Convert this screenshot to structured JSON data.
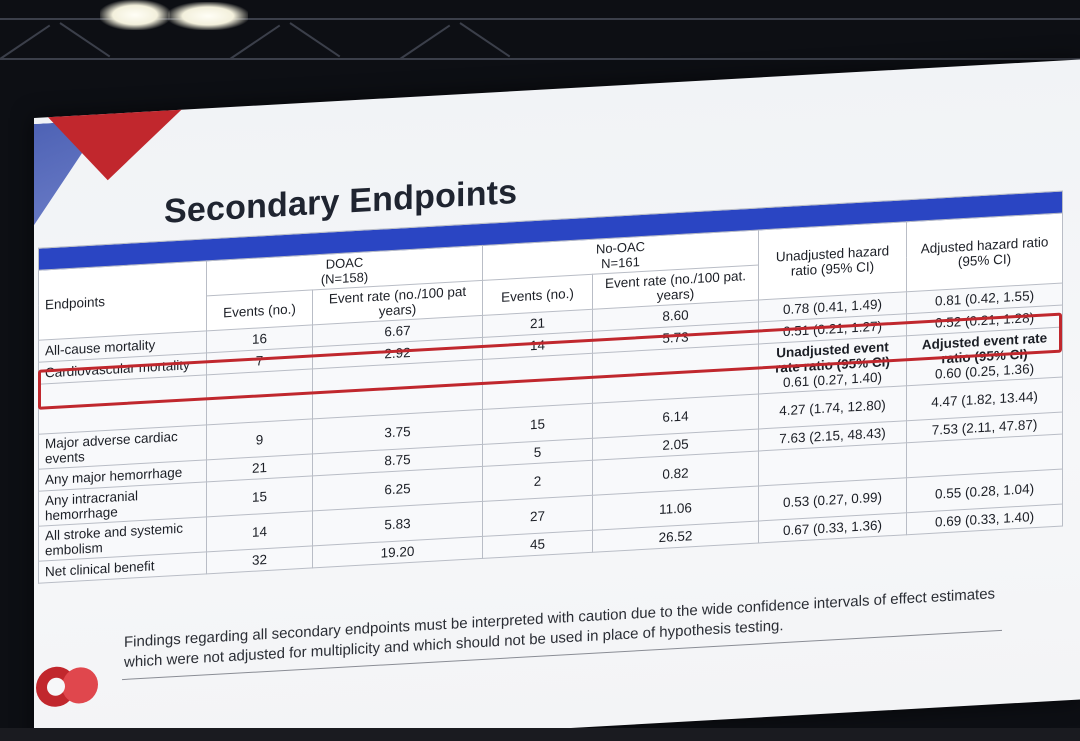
{
  "slide": {
    "title": "Secondary Endpoints",
    "footnote_line1": "Findings regarding all secondary endpoints must be interpreted with caution due to the wide confidence intervals of effect estimates",
    "footnote_line2": "which were not adjusted for multiplicity and which should not be used in place of hypothesis testing."
  },
  "table": {
    "doac_header": "DOAC",
    "doac_n": "(N=158)",
    "nooac_header": "No-OAC",
    "nooac_n": "N=161",
    "col_endpoints": "Endpoints",
    "col_events": "Events (no.)",
    "col_rate": "Event rate (no./100 pat years)",
    "col_events2": "Events (no.)",
    "col_rate2": "Event rate (no./100 pat. years)",
    "col_unadj_hr": "Unadjusted hazard ratio (95% CI)",
    "col_adj_hr": "Adjusted hazard ratio (95% CI)",
    "col_unadj_err": "Unadjusted event rate ratio (95% CI)",
    "col_adj_err": "Adjusted event rate ratio (95% CI)",
    "rows": [
      {
        "endpoint": "All-cause mortality",
        "events1": "16",
        "rate1": "6.67",
        "events2": "21",
        "rate2": "8.60",
        "unadj": "0.78 (0.41, 1.49)",
        "adj": "0.81 (0.42, 1.55)"
      },
      {
        "endpoint": "Cardiovascular mortality",
        "events1": "7",
        "rate1": "2.92",
        "events2": "14",
        "rate2": "5.73",
        "unadj": "0.51 (0.21, 1.27)",
        "adj": "0.52 (0.21, 1.28)"
      },
      {
        "endpoint": "",
        "events1": "",
        "rate1": "",
        "events2": "",
        "rate2": "",
        "unadj": "0.61 (0.27, 1.40)",
        "adj": "0.60 (0.25, 1.36)"
      },
      {
        "endpoint": "Major adverse cardiac events",
        "events1": "9",
        "rate1": "3.75",
        "events2": "15",
        "rate2": "6.14",
        "unadj": "4.27 (1.74, 12.80)",
        "adj": "4.47 (1.82, 13.44)"
      },
      {
        "endpoint": "Any major hemorrhage",
        "events1": "21",
        "rate1": "8.75",
        "events2": "5",
        "rate2": "2.05",
        "unadj": "7.63 (2.15, 48.43)",
        "adj": "7.53 (2.11, 47.87)"
      },
      {
        "endpoint": "Any intracranial hemorrhage",
        "events1": "15",
        "rate1": "6.25",
        "events2": "2",
        "rate2": "0.82",
        "unadj": "",
        "adj": ""
      },
      {
        "endpoint": "All stroke and systemic embolism",
        "events1": "14",
        "rate1": "5.83",
        "events2": "27",
        "rate2": "11.06",
        "unadj": "0.53 (0.27, 0.99)",
        "adj": "0.55 (0.28, 1.04)"
      },
      {
        "endpoint": "Net clinical benefit",
        "events1": "32",
        "rate1": "19.20",
        "events2": "45",
        "rate2": "26.52",
        "unadj": "0.67 (0.33, 1.36)",
        "adj": "0.69 (0.33, 1.40)"
      }
    ]
  },
  "colors": {
    "header_blue": "#2a45c3",
    "highlight_red": "#c0272d",
    "accent_red": "#c1272d"
  }
}
